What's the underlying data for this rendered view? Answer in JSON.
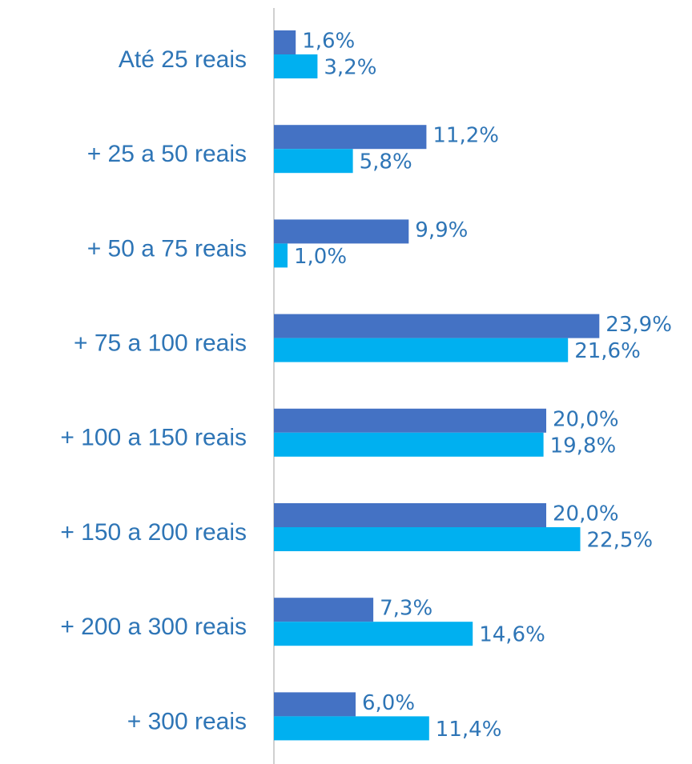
{
  "chart_data": {
    "type": "bar",
    "orientation": "horizontal",
    "categories": [
      "Até 25 reais",
      "+ 25 a 50 reais",
      "+ 50 a 75 reais",
      "+ 75 a 100 reais",
      "+ 100 a 150 reais",
      "+ 150 a 200 reais",
      "+ 200 a 300 reais",
      "+ 300 reais"
    ],
    "series": [
      {
        "color": "#4472c4",
        "values": [
          1.6,
          11.2,
          9.9,
          23.9,
          20.0,
          20.0,
          7.3,
          6.0
        ],
        "value_labels": [
          "1,6%",
          "11,2%",
          "9,9%",
          "23,9%",
          "20,0%",
          "20,0%",
          "7,3%",
          "6,0%"
        ]
      },
      {
        "color": "#00b0f0",
        "values": [
          3.2,
          5.8,
          1.0,
          21.6,
          19.8,
          22.5,
          14.6,
          11.4
        ],
        "value_labels": [
          "3,2%",
          "5,8%",
          "1,0%",
          "21,6%",
          "19,8%",
          "22,5%",
          "14,6%",
          "11,4%"
        ]
      }
    ],
    "xlim": [
      0,
      30
    ]
  }
}
